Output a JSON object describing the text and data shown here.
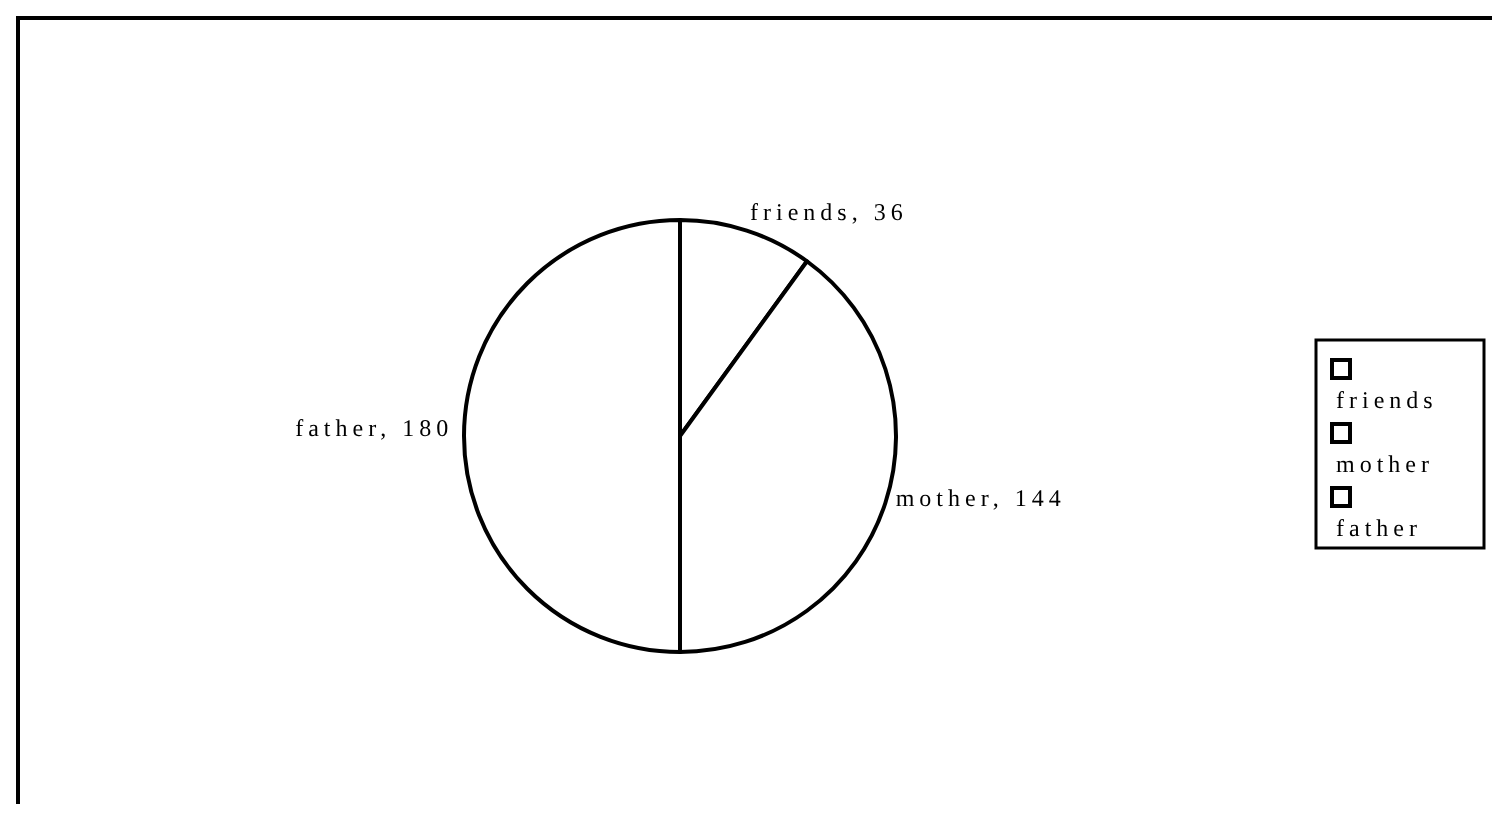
{
  "chart_data": {
    "type": "pie",
    "categories": [
      "friends",
      "mother",
      "father"
    ],
    "values": [
      36,
      144,
      180
    ],
    "value_labels": [
      "friends, 36",
      "mother, 144",
      "father, 180"
    ],
    "colors": [
      "#ffffff",
      "#ffffff",
      "#ffffff"
    ],
    "legend": "right"
  }
}
